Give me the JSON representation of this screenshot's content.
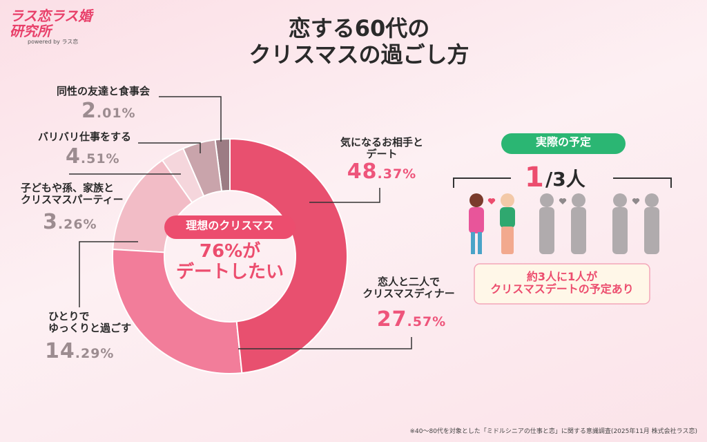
{
  "header": {
    "logo": "ラス恋ラス婚\n研究所",
    "powered_by": "powered by ラス恋"
  },
  "chart_data": {
    "type": "donut",
    "title": "恋する60代の\nクリスマスの過ごし方",
    "categories": [
      "気になるお相手と\nデート",
      "恋人と二人で\nクリスマスディナー",
      "ひとりで\nゆっくりと過ごす",
      "子どもや孫、家族と\nクリスマスパーティー",
      "バリバリ仕事をする",
      "同性の友達と食事会"
    ],
    "values": [
      48.37,
      27.57,
      14.29,
      3.26,
      4.51,
      2.01
    ],
    "value_labels": [
      "48.37%",
      "27.57%",
      "14.29%",
      "3.26%",
      "4.51%",
      "2.01%"
    ],
    "colors": [
      "#e8506f",
      "#f27d9a",
      "#f2bcc6",
      "#f5d6dc",
      "#c9a4ab",
      "#9c7c84"
    ],
    "center_badge": "理想のクリスマス",
    "center_text": "76%が\nデートしたい"
  },
  "side_panel": {
    "badge": "実際の予定",
    "ratio_one": "1",
    "ratio_rest": "/3人",
    "note": "約3人に1人が\nクリスマスデートの予定あり"
  },
  "footnote": "※40〜80代を対象とした「ミドルシニアの仕事と恋」に関する意識調査(2025年11月 株式会社ラス恋)"
}
